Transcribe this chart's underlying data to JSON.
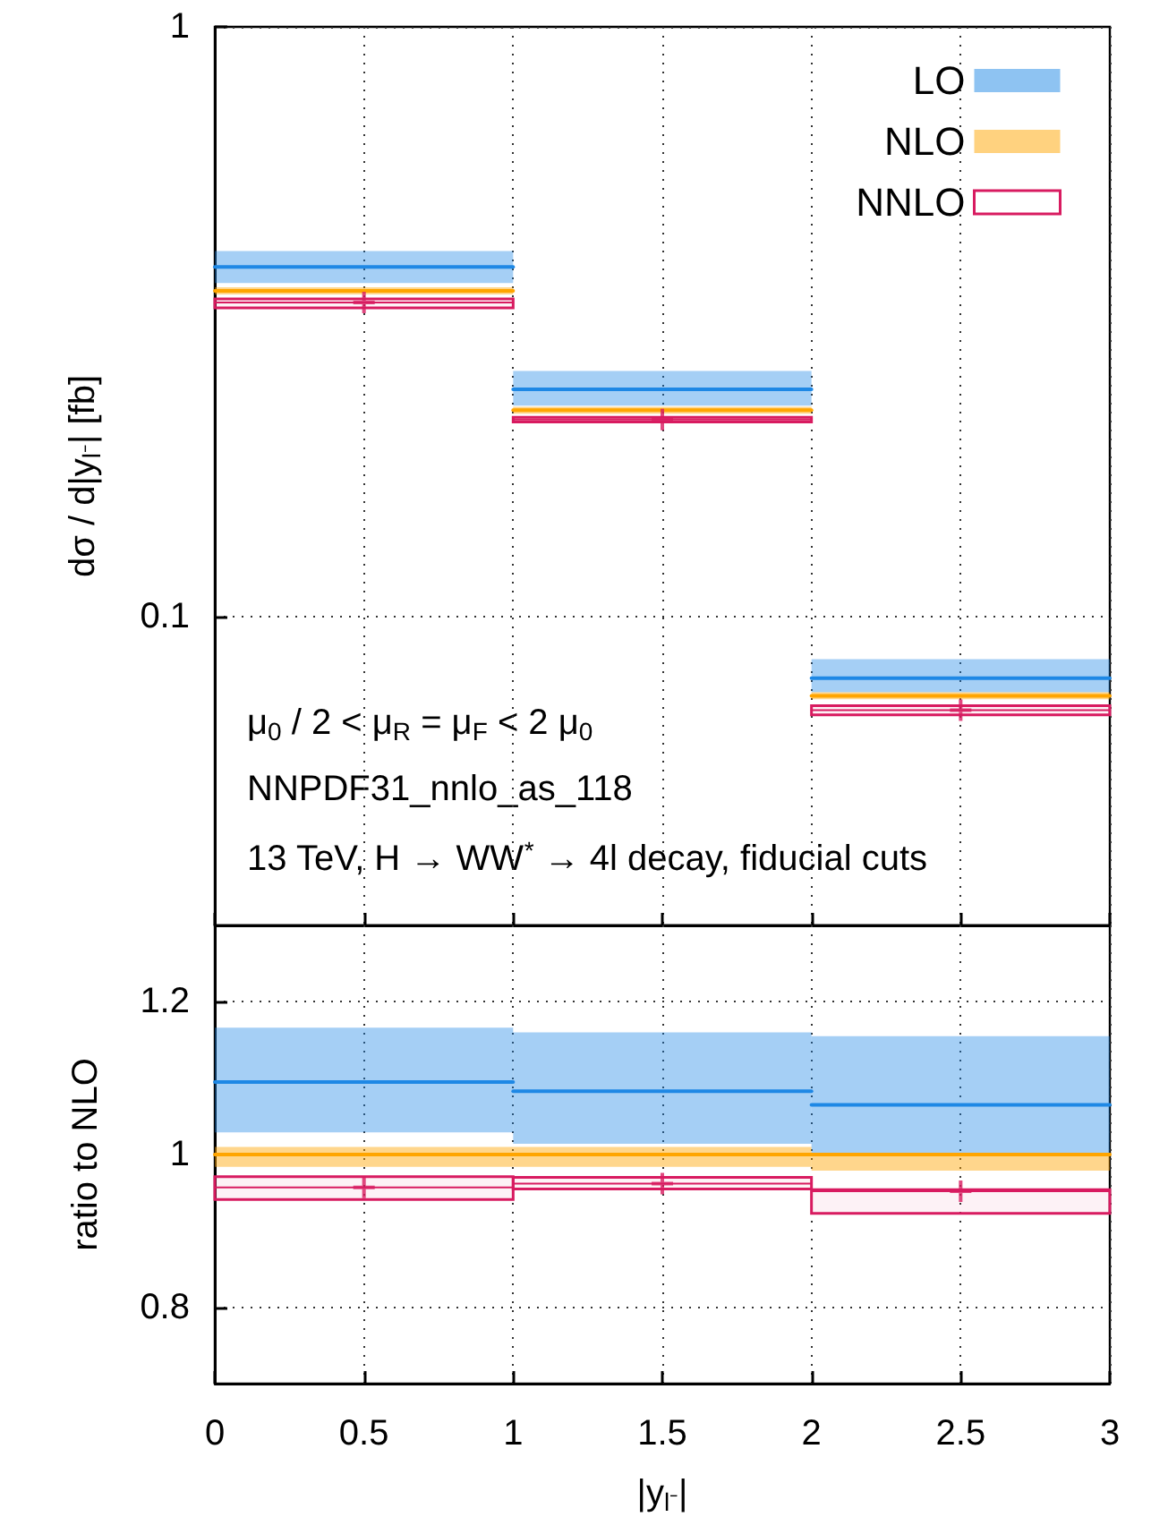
{
  "chart_data": [
    {
      "type": "step",
      "x": [
        0,
        1,
        2,
        3
      ],
      "log": true,
      "xlim": [
        0,
        3
      ],
      "xticks": [
        0,
        0.5,
        1,
        1.5,
        2,
        2.5,
        3
      ],
      "ylim": [
        0.03,
        1
      ],
      "yticks": [
        0.1,
        1
      ],
      "tick_labels": "y",
      "grid": true,
      "legend": "top right",
      "ylabel": "dσ / d|y$_{l⁻}$| [fb]",
      "annotations": [
        "μ$_{0}$ / 2 < μ$_{R}$ = μ$_{F}$ < 2 μ$_{0}$",
        "NNPDF31_nnlo_as_118",
        "13 TeV, H → WW$^{*}$ → 4l decay, fiducial cuts"
      ],
      "series": [
        {
          "name": "LO",
          "color": "#1e88e5",
          "values": [
            0.392,
            0.243,
            0.0787,
            0.0787
          ],
          "lower": [
            0.368,
            0.228,
            0.0745,
            0.0745
          ],
          "upper": [
            0.417,
            0.261,
            0.0848,
            0.0848
          ]
        },
        {
          "name": "NLO",
          "color": "#ffa500",
          "values": [
            0.357,
            0.224,
            0.0735,
            0.0735
          ],
          "lower": [
            0.352,
            0.221,
            0.0725,
            0.0725
          ],
          "upper": [
            0.362,
            0.227,
            0.0745,
            0.0745
          ]
        },
        {
          "name": "NNLO",
          "color": "#d81b60",
          "values": [
            0.341,
            0.216,
            0.0695,
            0.0695
          ],
          "lower": [
            0.334,
            0.214,
            0.0682,
            0.0682
          ],
          "upper": [
            0.346,
            0.218,
            0.0707,
            0.0707
          ]
        },
        {
          "type": "scatter",
          "color": "#d81b60",
          "marker": "cross",
          "x": [
            0.5,
            1.5,
            2.5
          ],
          "values": [
            0.341,
            0.216,
            0.0695
          ]
        }
      ]
    },
    {
      "type": "step",
      "x": [
        0,
        1,
        2,
        3
      ],
      "xlim": [
        0,
        3
      ],
      "xticks": [
        0,
        0.5,
        1,
        1.5,
        2,
        2.5,
        3
      ],
      "ylim": [
        0.7,
        1.3
      ],
      "yticks": [
        0.8,
        1,
        1.2
      ],
      "grid": true,
      "xlabel": "|y$_{l⁻}$|",
      "ylabel": "ratio to NLO",
      "series": [
        {
          "color": "#1e88e5",
          "values": [
            1.095,
            1.083,
            1.065,
            1.065
          ],
          "lower": [
            1.029,
            1.014,
            1.002,
            1.002
          ],
          "upper": [
            1.166,
            1.16,
            1.155,
            1.155
          ]
        },
        {
          "color": "#ffa500",
          "values": [
            1,
            1,
            1,
            1
          ],
          "lower": [
            0.984,
            0.984,
            0.979,
            0.979
          ],
          "upper": [
            1.01,
            1.01,
            1,
            1
          ]
        },
        {
          "color": "#d81b60",
          "values": [
            0.957,
            0.962,
            0.952,
            0.952
          ],
          "lower": [
            0.941,
            0.955,
            0.923,
            0.923
          ],
          "upper": [
            0.971,
            0.97,
            0.954,
            0.954
          ]
        },
        {
          "type": "scatter",
          "color": "#d81b60",
          "marker": "cross",
          "x": [
            0.5,
            1.5,
            2.5
          ],
          "values": [
            0.957,
            0.962,
            0.952
          ]
        }
      ]
    }
  ]
}
